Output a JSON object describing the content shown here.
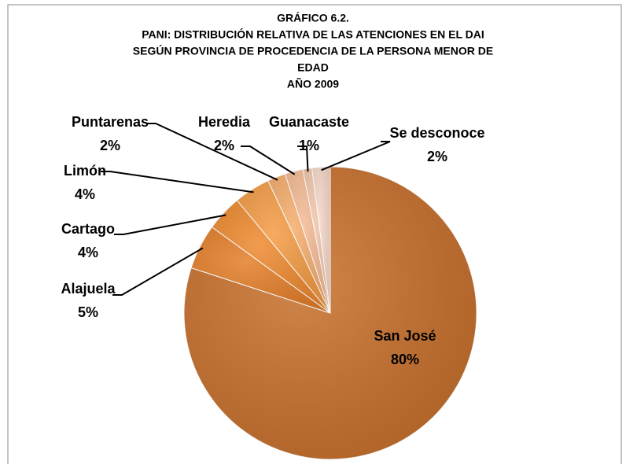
{
  "chart_data": {
    "type": "pie",
    "title": [
      "GRÁFICO 6.2.",
      "PANI: DISTRIBUCIÓN RELATIVA DE LAS ATENCIONES EN EL DAI",
      "SEGÚN PROVINCIA DE PROCEDENCIA DE LA PERSONA MENOR DE",
      "EDAD",
      "AÑO 2009"
    ],
    "categories": [
      "San José",
      "Alajuela",
      "Cartago",
      "Limón",
      "Puntarenas",
      "Heredia",
      "Guanacaste",
      "Se desconoce"
    ],
    "values": [
      80,
      5,
      4,
      4,
      2,
      2,
      1,
      2
    ],
    "value_labels": [
      "80%",
      "5%",
      "4%",
      "4%",
      "2%",
      "2%",
      "1%",
      "2%"
    ],
    "colors": [
      "#c8702c",
      "#e47f2a",
      "#ee8a30",
      "#f49c45",
      "#f6ae6e",
      "#f4bb95",
      "#f2c7ac",
      "#f6d9ca"
    ]
  }
}
